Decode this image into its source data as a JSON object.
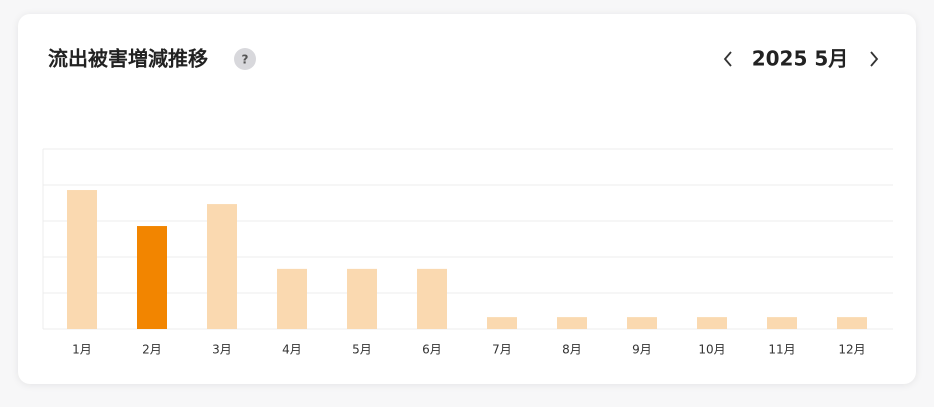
{
  "chart_data": {
    "type": "bar",
    "title": "流出被害増減推移",
    "help_icon": "?",
    "period": "2025 5月",
    "categories": [
      "1月",
      "2月",
      "3月",
      "4月",
      "5月",
      "6月",
      "7月",
      "8月",
      "9月",
      "10月",
      "11月",
      "12月"
    ],
    "values": [
      3.86,
      2.86,
      3.47,
      1.67,
      1.67,
      1.67,
      0.33,
      0.33,
      0.33,
      0.33,
      0.33,
      0.33
    ],
    "colors": [
      "#fad9b0",
      "#f28500",
      "#fad9b0",
      "#fad9b0",
      "#fad9b0",
      "#fad9b0",
      "#fad9b0",
      "#fad9b0",
      "#fad9b0",
      "#fad9b0",
      "#fad9b0",
      "#fad9b0"
    ],
    "ylim": [
      0,
      5
    ],
    "yticks": [
      0,
      1,
      2,
      3,
      4,
      5
    ],
    "grid": true
  }
}
